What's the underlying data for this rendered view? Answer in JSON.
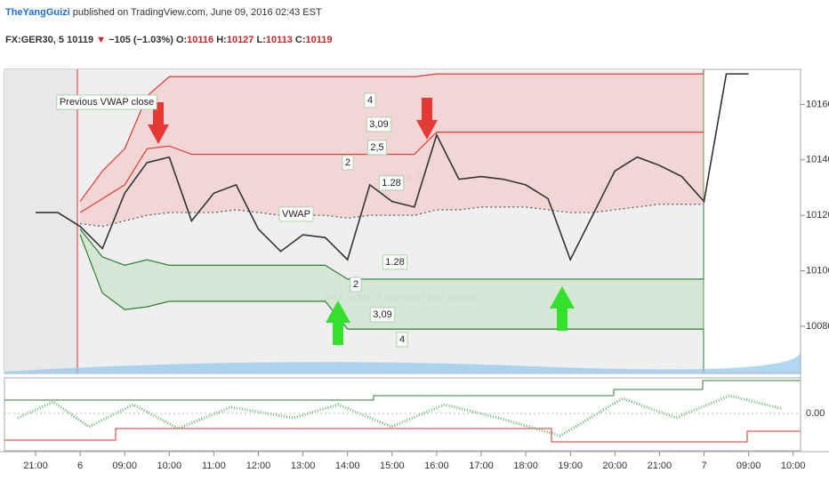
{
  "header": {
    "author": "TheYangGuizi",
    "published": "published on TradingView.com, June 09, 2016 02:43 EST",
    "symbol": "FX:GER30, 5",
    "last": "10119",
    "direction": "▼",
    "change": "−105 (−1.03%)",
    "open_label": "O:",
    "open": "10116",
    "high_label": "H:",
    "high": "10127",
    "low_label": "L:",
    "low": "10113",
    "close_label": "C:",
    "close": "10119"
  },
  "watermark": {
    "symbol": "GER30, 5",
    "description": "DAX index of German listed shares"
  },
  "annotations": [
    "Previous VWAP close",
    "VWAP",
    "4",
    "3,09",
    "2,5",
    "2",
    "1.28",
    "1.28",
    "2",
    "3,09",
    "4"
  ],
  "chart_data": {
    "type": "line",
    "categories": [
      "21:00",
      null,
      "6",
      null,
      "09:00",
      null,
      "10:00",
      null,
      "11:00",
      null,
      "12:00",
      null,
      "13:00",
      null,
      "14:00",
      null,
      "15:00",
      null,
      "16:00",
      null,
      "17:00",
      null,
      "18:00",
      null,
      "19:00",
      null,
      "20:00",
      null,
      "21:00",
      null,
      "7",
      null,
      "09:00",
      null,
      "10:00"
    ],
    "series": [
      {
        "color": "#333333",
        "values": [
          10121,
          10121,
          10116,
          10108,
          10128,
          10139,
          10141,
          10118,
          10128,
          10131,
          10115,
          10107,
          10113,
          10112,
          10104,
          10131,
          10125,
          10123,
          10149,
          10133,
          10134,
          10133,
          10131,
          10126,
          10104,
          10120,
          10136,
          10141,
          10138,
          10134,
          10125,
          10171,
          10171,
          null,
          null
        ]
      },
      {
        "color": "#555555",
        "values": [
          null,
          null,
          10117,
          10116,
          10118,
          10120,
          10121,
          10121,
          10121,
          10122,
          10121,
          10120,
          10120,
          10120,
          10119,
          10120,
          10120,
          10120,
          10122,
          10122,
          10123,
          10123,
          10123,
          10122,
          10121,
          10121,
          10122,
          10123,
          10124,
          10124,
          10124,
          null,
          null,
          null,
          null
        ]
      },
      {
        "color": "#e53935",
        "values": [
          null,
          null,
          10125,
          10136,
          10144,
          10163,
          10170,
          10170,
          10170,
          10170,
          10170,
          10170,
          10170,
          10170,
          10170,
          10170,
          10170,
          10170,
          10171,
          10171,
          10171,
          10171,
          10171,
          10171,
          10171,
          10171,
          10171,
          10171,
          10171,
          10171,
          10171,
          null,
          null,
          null,
          null
        ]
      },
      {
        "color": "#e53935",
        "values": [
          null,
          null,
          10121,
          10126,
          10131,
          10144,
          10145,
          10142,
          10142,
          10142,
          10142,
          10142,
          10142,
          10142,
          10142,
          10142,
          10142,
          10142,
          10150,
          10150,
          10150,
          10150,
          10150,
          10150,
          10150,
          10150,
          10150,
          10150,
          10150,
          10150,
          10150,
          null,
          null,
          null,
          null
        ]
      },
      {
        "color": "#2e7d32",
        "values": [
          null,
          null,
          10115,
          10105,
          10102,
          10104,
          10102,
          10102,
          10102,
          10102,
          10102,
          10102,
          10102,
          10102,
          10097,
          10097,
          10097,
          10097,
          10097,
          10097,
          10097,
          10097,
          10097,
          10097,
          10097,
          10097,
          10097,
          10097,
          10097,
          10097,
          10097,
          null,
          null,
          null,
          null
        ]
      },
      {
        "color": "#2e7d32",
        "values": [
          null,
          null,
          10113,
          10092,
          10086,
          10087,
          10089,
          10089,
          10089,
          10089,
          10089,
          10089,
          10089,
          10089,
          10079,
          10079,
          10079,
          10079,
          10079,
          10079,
          10079,
          10079,
          10079,
          10079,
          10079,
          10079,
          10079,
          10079,
          10079,
          10079,
          10079,
          null,
          null,
          null,
          null
        ]
      }
    ],
    "ylim": [
      10063,
      10172
    ],
    "yticks": [
      10080,
      10100,
      10120,
      10140,
      10160
    ],
    "indicator": {
      "yticks": [
        {
          "value": 0,
          "label": "0.00"
        }
      ]
    }
  }
}
